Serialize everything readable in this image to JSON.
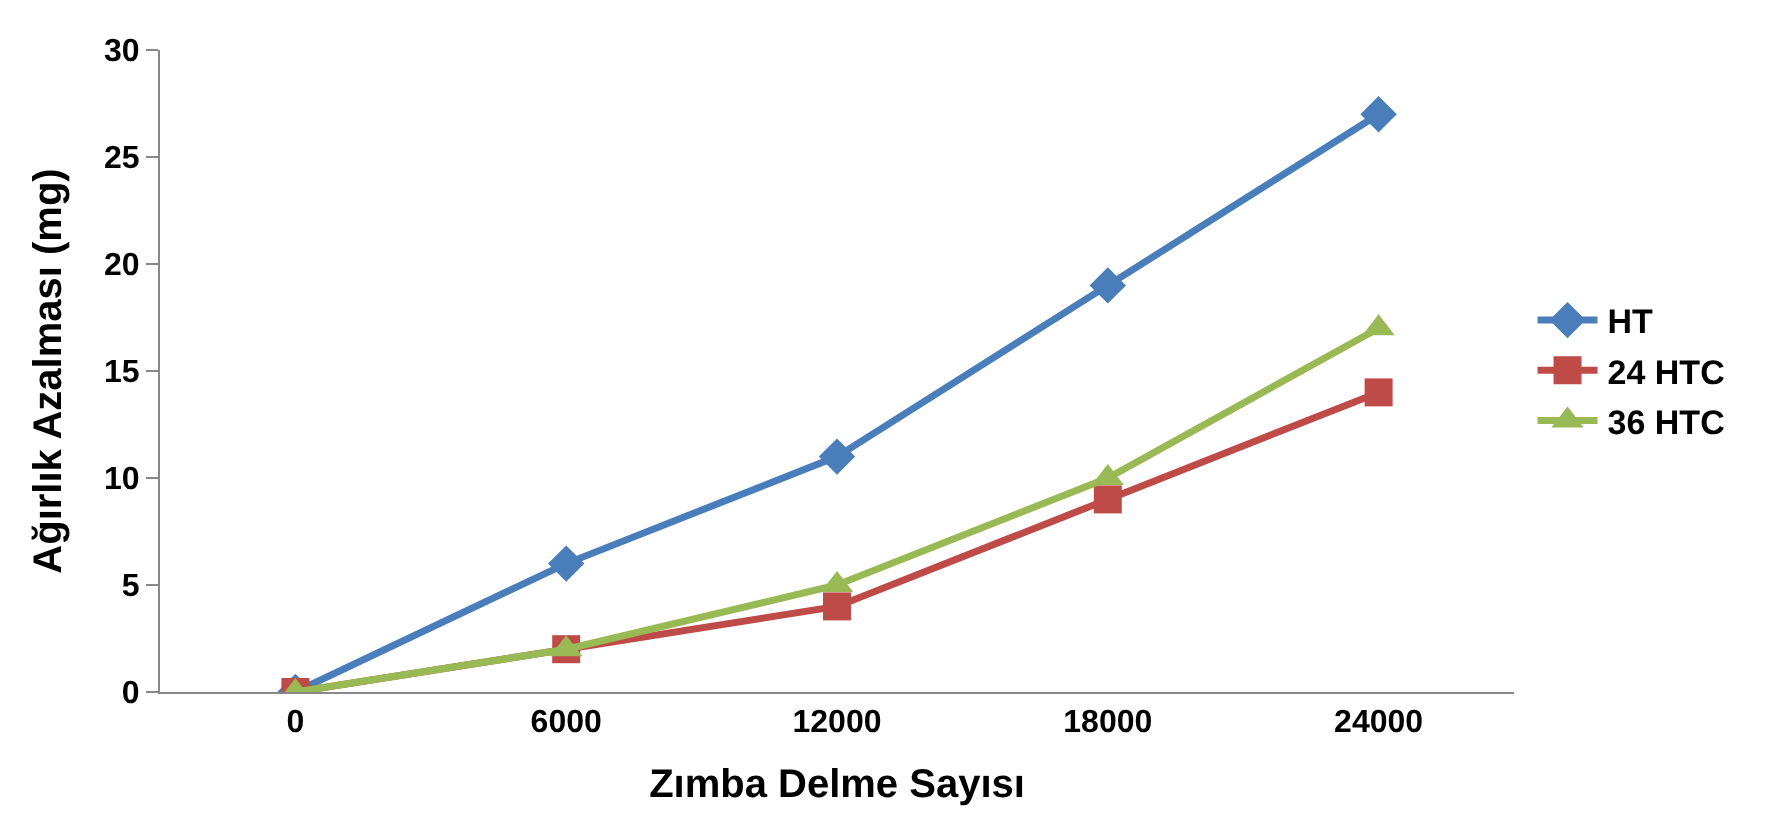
{
  "chart_data": {
    "type": "line",
    "xlabel": "Zımba Delme Sayısı",
    "ylabel": "Ağırlık Azalması (mg)",
    "categories": [
      "0",
      "6000",
      "12000",
      "18000",
      "24000"
    ],
    "series": [
      {
        "name": "HT",
        "color": "#4a7ebb",
        "marker": "diamond",
        "values": [
          0,
          6,
          11,
          19,
          27
        ]
      },
      {
        "name": "24 HTC",
        "color": "#be4b48",
        "marker": "square",
        "values": [
          0,
          2,
          4,
          9,
          14
        ]
      },
      {
        "name": "36 HTC",
        "color": "#98b954",
        "marker": "triangle",
        "values": [
          0,
          2,
          5,
          10,
          17
        ]
      }
    ],
    "ylim": [
      0,
      30
    ],
    "yticks": [
      0,
      5,
      10,
      15,
      20,
      25,
      30
    ],
    "legend": "right",
    "line_style": "solid"
  }
}
